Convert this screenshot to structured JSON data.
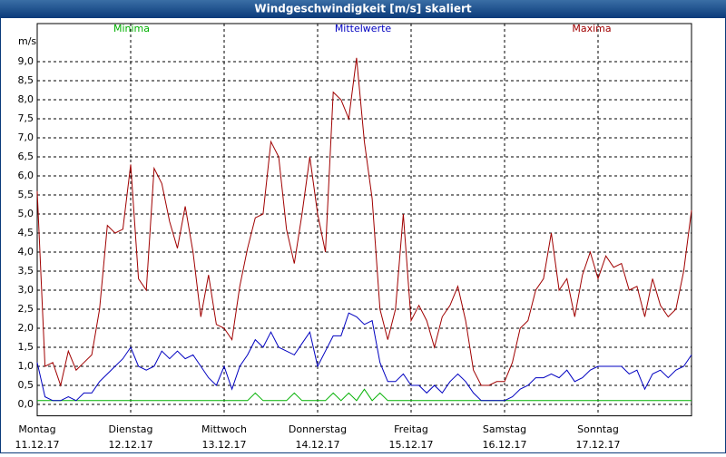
{
  "chart_data": {
    "type": "line",
    "title": "Windgeschwindigkeit [m/s] skaliert",
    "y_label": "m/s",
    "grid": true,
    "xlim": [
      0,
      168
    ],
    "ylim": [
      -0.3,
      10.0
    ],
    "xticks": [
      {
        "value": 0,
        "label": "Montag",
        "date": "11.12.17"
      },
      {
        "value": 24,
        "label": "Dienstag",
        "date": "12.12.17"
      },
      {
        "value": 48,
        "label": "Mittwoch",
        "date": "13.12.17"
      },
      {
        "value": 72,
        "label": "Donnerstag",
        "date": "14.12.17"
      },
      {
        "value": 96,
        "label": "Freitag",
        "date": "15.12.17"
      },
      {
        "value": 120,
        "label": "Samstag",
        "date": "16.12.17"
      },
      {
        "value": 144,
        "label": "Sonntag",
        "date": "17.12.17"
      }
    ],
    "yticks": [
      {
        "value": 0,
        "label": "0,0"
      },
      {
        "value": 0.5,
        "label": "0,5"
      },
      {
        "value": 1,
        "label": "1,0"
      },
      {
        "value": 1.5,
        "label": "1,5"
      },
      {
        "value": 2,
        "label": "2,0"
      },
      {
        "value": 2.5,
        "label": "2,5"
      },
      {
        "value": 3,
        "label": "3,0"
      },
      {
        "value": 3.5,
        "label": "3,5"
      },
      {
        "value": 4,
        "label": "4,0"
      },
      {
        "value": 4.5,
        "label": "4,5"
      },
      {
        "value": 5,
        "label": "5,0"
      },
      {
        "value": 5.5,
        "label": "5,5"
      },
      {
        "value": 6,
        "label": "6,0"
      },
      {
        "value": 6.5,
        "label": "6,5"
      },
      {
        "value": 7,
        "label": "7,0"
      },
      {
        "value": 7.5,
        "label": "7,5"
      },
      {
        "value": 8,
        "label": "8,0"
      },
      {
        "value": 8.5,
        "label": "8,5"
      },
      {
        "value": 9,
        "label": "9,0"
      }
    ],
    "x": [
      0,
      2,
      4,
      6,
      8,
      10,
      12,
      14,
      16,
      18,
      20,
      22,
      24,
      26,
      28,
      30,
      32,
      34,
      36,
      38,
      40,
      42,
      44,
      46,
      48,
      50,
      52,
      54,
      56,
      58,
      60,
      62,
      64,
      66,
      68,
      70,
      72,
      74,
      76,
      78,
      80,
      82,
      84,
      86,
      88,
      90,
      92,
      94,
      96,
      98,
      100,
      102,
      104,
      106,
      108,
      110,
      112,
      114,
      116,
      118,
      120,
      122,
      124,
      126,
      128,
      130,
      132,
      134,
      136,
      138,
      140,
      142,
      144,
      146,
      148,
      150,
      152,
      154,
      156,
      158,
      160,
      162,
      164,
      166,
      168
    ],
    "series": [
      {
        "name": "Minima",
        "color": "#00b000",
        "values": [
          0.1,
          0.1,
          0.1,
          0.1,
          0.1,
          0.1,
          0.1,
          0.1,
          0.1,
          0.1,
          0.1,
          0.1,
          0.1,
          0.1,
          0.1,
          0.1,
          0.1,
          0.1,
          0.1,
          0.1,
          0.1,
          0.1,
          0.1,
          0.1,
          0.1,
          0.1,
          0.1,
          0.1,
          0.3,
          0.1,
          0.1,
          0.1,
          0.1,
          0.3,
          0.1,
          0.1,
          0.1,
          0.1,
          0.3,
          0.1,
          0.3,
          0.1,
          0.4,
          0.1,
          0.3,
          0.1,
          0.1,
          0.1,
          0.1,
          0.1,
          0.1,
          0.1,
          0.1,
          0.1,
          0.1,
          0.1,
          0.1,
          0.1,
          0.1,
          0.1,
          0.1,
          0.1,
          0.1,
          0.1,
          0.1,
          0.1,
          0.1,
          0.1,
          0.1,
          0.1,
          0.1,
          0.1,
          0.1,
          0.1,
          0.1,
          0.1,
          0.1,
          0.1,
          0.1,
          0.1,
          0.1,
          0.1,
          0.1,
          0.1,
          0.1
        ]
      },
      {
        "name": "Mittelwerte",
        "color": "#0000c0",
        "values": [
          1.1,
          0.2,
          0.1,
          0.1,
          0.2,
          0.1,
          0.3,
          0.3,
          0.6,
          0.8,
          1.0,
          1.2,
          1.5,
          1.0,
          0.9,
          1.0,
          1.4,
          1.2,
          1.4,
          1.2,
          1.3,
          1.0,
          0.7,
          0.5,
          1.0,
          0.4,
          1.0,
          1.3,
          1.7,
          1.5,
          1.9,
          1.5,
          1.4,
          1.3,
          1.6,
          1.9,
          1.0,
          1.4,
          1.8,
          1.8,
          2.4,
          2.3,
          2.1,
          2.2,
          1.1,
          0.6,
          0.6,
          0.8,
          0.5,
          0.5,
          0.3,
          0.5,
          0.3,
          0.6,
          0.8,
          0.6,
          0.3,
          0.1,
          0.1,
          0.1,
          0.1,
          0.2,
          0.4,
          0.5,
          0.7,
          0.7,
          0.8,
          0.7,
          0.9,
          0.6,
          0.7,
          0.9,
          1.0,
          1.0,
          1.0,
          1.0,
          0.8,
          0.9,
          0.4,
          0.8,
          0.9,
          0.7,
          0.9,
          1.0,
          1.3
        ]
      },
      {
        "name": "Maxima",
        "color": "#a00000",
        "values": [
          5.6,
          1.0,
          1.1,
          0.5,
          1.4,
          0.9,
          1.1,
          1.3,
          2.5,
          4.7,
          4.5,
          4.6,
          6.3,
          3.3,
          3.0,
          6.2,
          5.8,
          4.8,
          4.1,
          5.2,
          4.0,
          2.3,
          3.4,
          2.1,
          2.0,
          1.7,
          3.1,
          4.1,
          4.9,
          5.0,
          6.9,
          6.5,
          4.6,
          3.7,
          5.0,
          6.5,
          5.0,
          4.0,
          8.2,
          8.0,
          7.5,
          9.1,
          6.9,
          5.4,
          2.5,
          1.7,
          2.5,
          5.0,
          2.2,
          2.6,
          2.2,
          1.5,
          2.3,
          2.6,
          3.1,
          2.2,
          0.9,
          0.5,
          0.5,
          0.6,
          0.6,
          1.1,
          2.0,
          2.2,
          3.0,
          3.3,
          4.5,
          3.0,
          3.3,
          2.3,
          3.4,
          4.0,
          3.3,
          3.9,
          3.6,
          3.7,
          3.0,
          3.1,
          2.3,
          3.3,
          2.6,
          2.3,
          2.5,
          3.5,
          5.1
        ]
      }
    ]
  }
}
